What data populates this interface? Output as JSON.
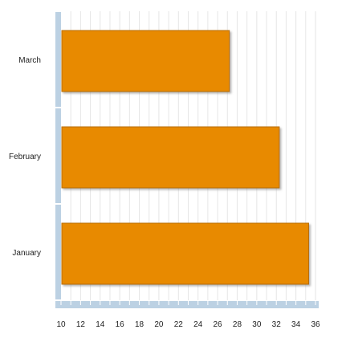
{
  "chart_data": {
    "type": "bar",
    "orientation": "horizontal",
    "categories": [
      "January",
      "February",
      "March"
    ],
    "series": [
      {
        "values": [
          35.3,
          32.3,
          27.2
        ]
      }
    ],
    "x_ticks": [
      10,
      12,
      14,
      16,
      18,
      20,
      22,
      24,
      26,
      28,
      30,
      32,
      34,
      36
    ],
    "xlim": [
      10,
      36
    ],
    "grid": true,
    "legend": "none",
    "colors": {
      "bar_fill": "#E88A00",
      "bar_edge": "#B86C00",
      "bar_shadow": "#8a8a8a",
      "axis_band": "#BCD1E3",
      "axis_tick_marks": "#FFFFFF",
      "gridline": "#E6E6E6",
      "text": "#222222"
    }
  }
}
